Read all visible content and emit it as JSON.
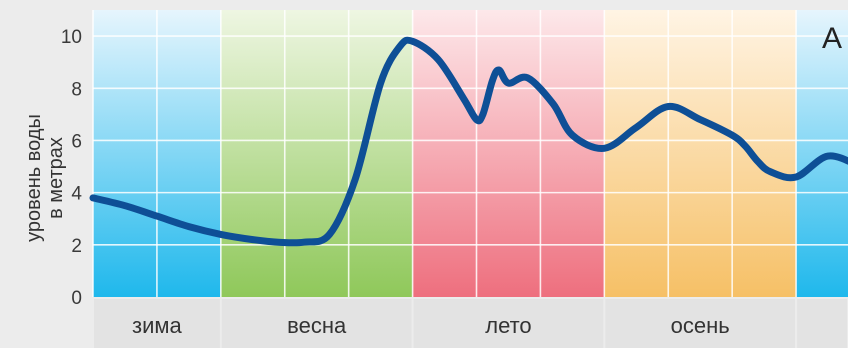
{
  "chart_data": {
    "type": "line",
    "title": "",
    "corner_label": "А",
    "ylabel_lines": [
      "уровень воды",
      "в метрах"
    ],
    "xlabel": "",
    "ylim": [
      0,
      11
    ],
    "yticks": [
      "0",
      "2",
      "4",
      "6",
      "8",
      "10"
    ],
    "grid": true,
    "months_count": 12,
    "seasons": [
      {
        "label": "зима",
        "months": 2,
        "color_top": "#e6f5fd",
        "color_bottom": "#1fb8ec"
      },
      {
        "label": "весна",
        "months": 3,
        "color_top": "#eef6e2",
        "color_bottom": "#8fc85a"
      },
      {
        "label": "лето",
        "months": 3,
        "color_top": "#fde8ea",
        "color_bottom": "#ee6f7e"
      },
      {
        "label": "осень",
        "months": 3,
        "color_top": "#fff4e4",
        "color_bottom": "#f6c066"
      },
      {
        "label": "",
        "months": 1,
        "color_top": "#e6f5fd",
        "color_bottom": "#1fb8ec"
      }
    ],
    "line_color": "#0e4f96",
    "series": [
      {
        "name": "",
        "x": [
          0,
          0.5,
          1.0,
          1.5,
          2.0,
          2.5,
          2.9,
          3.3,
          3.7,
          4.1,
          4.5,
          4.8,
          5.0,
          5.4,
          5.8,
          6.0,
          6.1,
          6.25,
          6.35,
          6.5,
          6.8,
          7.2,
          7.5,
          8.0,
          8.5,
          9.0,
          9.5,
          10.0,
          10.2,
          10.4,
          10.6,
          11.0,
          11.5,
          12.0
        ],
        "y": [
          3.8,
          3.5,
          3.1,
          2.7,
          2.4,
          2.2,
          2.1,
          2.1,
          2.4,
          4.5,
          8.2,
          9.6,
          9.8,
          9.1,
          7.6,
          6.8,
          7.0,
          8.3,
          8.7,
          8.2,
          8.4,
          7.4,
          6.2,
          5.7,
          6.5,
          7.3,
          6.8,
          6.2,
          5.8,
          5.2,
          4.8,
          4.6,
          5.4,
          5.0
        ]
      }
    ]
  }
}
